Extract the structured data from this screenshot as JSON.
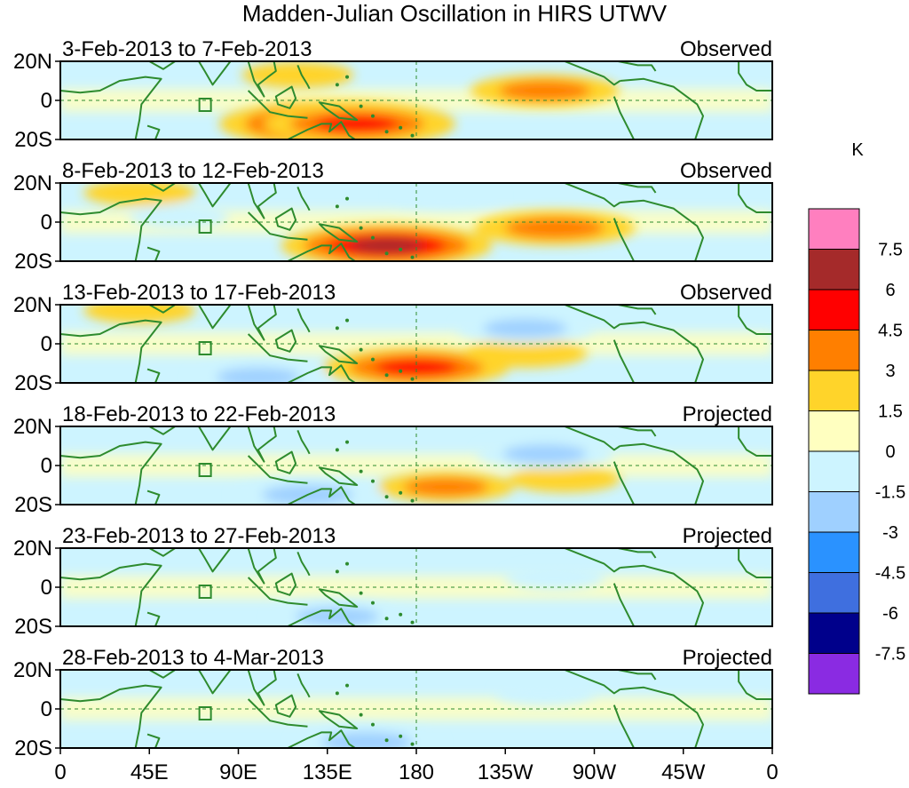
{
  "chart_data": {
    "type": "heatmap",
    "title": "Madden-Julian Oscillation in HIRS UTWV",
    "colorbar": {
      "unit": "K",
      "levels": [
        "7.5",
        "6",
        "4.5",
        "3",
        "1.5",
        "0",
        "-1.5",
        "-3",
        "-4.5",
        "-6",
        "-7.5"
      ],
      "colors": [
        "#ff7fbf",
        "#a52a2a",
        "#ff0000",
        "#ff7f00",
        "#ffd42a",
        "#ffffc0",
        "#cdf4ff",
        "#9fd0ff",
        "#2a92ff",
        "#3f6fdf",
        "#00008b",
        "#8a2be2"
      ]
    },
    "x_ticks": [
      "0",
      "45E",
      "90E",
      "135E",
      "180",
      "135W",
      "90W",
      "45W",
      "0"
    ],
    "y_ticks": [
      "20N",
      "0",
      "20S"
    ],
    "xlim": [
      0,
      360
    ],
    "ylim": [
      -20,
      20
    ],
    "panels": [
      {
        "period": "3-Feb-2013 to 7-Feb-2013",
        "kind": "Observed",
        "anomalies": [
          {
            "lon": 140,
            "lat": -12,
            "value": 7
          },
          {
            "lon": 150,
            "lat": -12,
            "value": 5
          },
          {
            "lon": 120,
            "lat": 13,
            "value": 2
          },
          {
            "lon": 245,
            "lat": 5,
            "value": 3.5
          },
          {
            "lon": 60,
            "lat": 0,
            "value": -1
          },
          {
            "lon": 120,
            "lat": 5,
            "value": -1
          }
        ]
      },
      {
        "period": "8-Feb-2013 to 12-Feb-2013",
        "kind": "Observed",
        "anomalies": [
          {
            "lon": 165,
            "lat": -12,
            "value": 6
          },
          {
            "lon": 250,
            "lat": -3,
            "value": 4
          },
          {
            "lon": 195,
            "lat": 14,
            "value": -2
          },
          {
            "lon": 60,
            "lat": 3,
            "value": -1.5
          },
          {
            "lon": 40,
            "lat": 15,
            "value": 2
          }
        ]
      },
      {
        "period": "13-Feb-2013 to 17-Feb-2013",
        "kind": "Observed",
        "anomalies": [
          {
            "lon": 180,
            "lat": -12,
            "value": 5
          },
          {
            "lon": 235,
            "lat": -5,
            "value": 2.5
          },
          {
            "lon": 235,
            "lat": 8,
            "value": -3
          },
          {
            "lon": 100,
            "lat": -17,
            "value": -3
          },
          {
            "lon": 40,
            "lat": 17,
            "value": 2
          }
        ]
      },
      {
        "period": "18-Feb-2013 to 22-Feb-2013",
        "kind": "Projected",
        "anomalies": [
          {
            "lon": 195,
            "lat": -11,
            "value": 3
          },
          {
            "lon": 255,
            "lat": -7,
            "value": 2
          },
          {
            "lon": 245,
            "lat": 6,
            "value": -3
          },
          {
            "lon": 125,
            "lat": -15,
            "value": -3.5
          }
        ]
      },
      {
        "period": "23-Feb-2013 to 27-Feb-2013",
        "kind": "Projected",
        "anomalies": [
          {
            "lon": 140,
            "lat": -15,
            "value": -3
          },
          {
            "lon": 250,
            "lat": 5,
            "value": -1.5
          },
          {
            "lon": 130,
            "lat": 15,
            "value": 1
          }
        ]
      },
      {
        "period": "28-Feb-2013 to 4-Mar-2013",
        "kind": "Projected",
        "anomalies": [
          {
            "lon": 155,
            "lat": -17,
            "value": -3.5
          },
          {
            "lon": 245,
            "lat": 8,
            "value": -1.5
          },
          {
            "lon": 125,
            "lat": 10,
            "value": 1
          }
        ]
      }
    ]
  }
}
